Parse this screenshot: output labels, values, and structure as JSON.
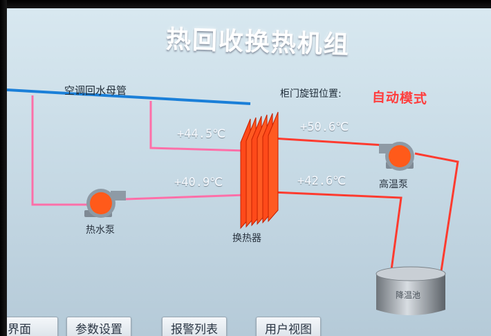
{
  "title": "热回收换热机组",
  "pipe_label": "空调回水母管",
  "cabinet": {
    "label": "柜门旋钮位置:",
    "mode": "自动模式"
  },
  "readings": {
    "hx_in_top": "+44.5℃",
    "hx_in_bottom": "+40.9℃",
    "hx_out_top": "+50.6℃",
    "hx_out_bottom": "+42.6℃"
  },
  "devices": {
    "hot_water_pump": "热水泵",
    "heat_exchanger": "换热器",
    "high_temp_pump": "高温泵",
    "tank": "降温池"
  },
  "nav": [
    "界面",
    "参数设置",
    "报警列表",
    "用户视图"
  ],
  "colors": {
    "blue_pipe": "#1a7fd8",
    "pink_pipe": "#ff6fa8",
    "red_pipe": "#ff3b2f",
    "pump_fill": "#ff5a1a",
    "mode_text": "#ff3d3d"
  }
}
